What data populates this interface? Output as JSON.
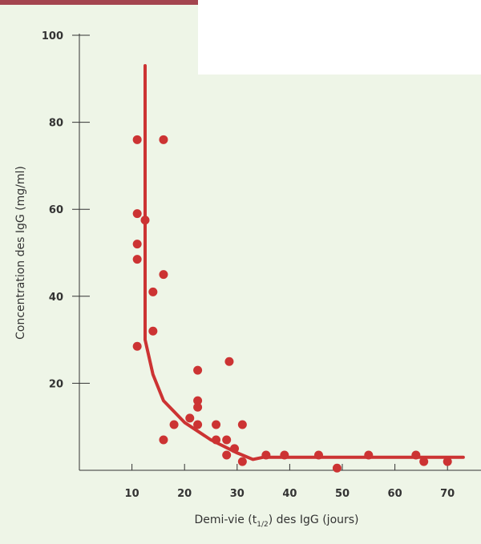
{
  "chart_data": {
    "type": "scatter",
    "title": "",
    "xlabel": {
      "prefix": "Demi-vie (t",
      "subscript": "1/2",
      "suffix": ") des IgG (jours)"
    },
    "ylabel": "Concentration des IgG (mg/ml)",
    "xlim": [
      0,
      75
    ],
    "ylim": [
      0,
      100
    ],
    "xticks": [
      10,
      20,
      30,
      40,
      50,
      60,
      70
    ],
    "yticks": [
      20,
      40,
      60,
      80,
      100
    ],
    "grid": false,
    "colors": {
      "points": "#cc3333",
      "curve": "#cc3333",
      "axis": "#333333",
      "background": "#eef5e7",
      "accent_bar": "#a4454f"
    },
    "series": [
      {
        "type": "scatter",
        "points": [
          [
            11,
            76
          ],
          [
            16,
            76
          ],
          [
            11,
            59
          ],
          [
            12.5,
            57.5
          ],
          [
            11,
            52
          ],
          [
            11,
            48.5
          ],
          [
            16,
            45
          ],
          [
            14,
            41
          ],
          [
            14,
            32
          ],
          [
            11,
            28.5
          ],
          [
            22.5,
            23
          ],
          [
            28.5,
            25
          ],
          [
            22.5,
            16
          ],
          [
            22.5,
            14.5
          ],
          [
            21,
            12
          ],
          [
            18,
            10.5
          ],
          [
            22.5,
            10.5
          ],
          [
            26,
            10.5
          ],
          [
            31,
            10.5
          ],
          [
            16,
            7
          ],
          [
            26,
            7
          ],
          [
            28,
            7
          ],
          [
            29.5,
            5
          ],
          [
            28,
            3.5
          ],
          [
            31,
            2
          ],
          [
            35.5,
            3.5
          ],
          [
            39,
            3.5
          ],
          [
            45.5,
            3.5
          ],
          [
            55,
            3.5
          ],
          [
            64,
            3.5
          ],
          [
            65.5,
            2
          ],
          [
            70,
            2
          ],
          [
            49,
            0.5
          ]
        ]
      },
      {
        "type": "line",
        "points": [
          [
            12.5,
            93
          ],
          [
            12.5,
            36
          ],
          [
            12.5,
            30
          ],
          [
            14,
            22
          ],
          [
            16,
            16
          ],
          [
            20,
            11
          ],
          [
            25,
            7
          ],
          [
            30,
            4
          ],
          [
            33,
            2.5
          ],
          [
            35,
            3
          ],
          [
            73,
            3
          ]
        ]
      }
    ]
  }
}
